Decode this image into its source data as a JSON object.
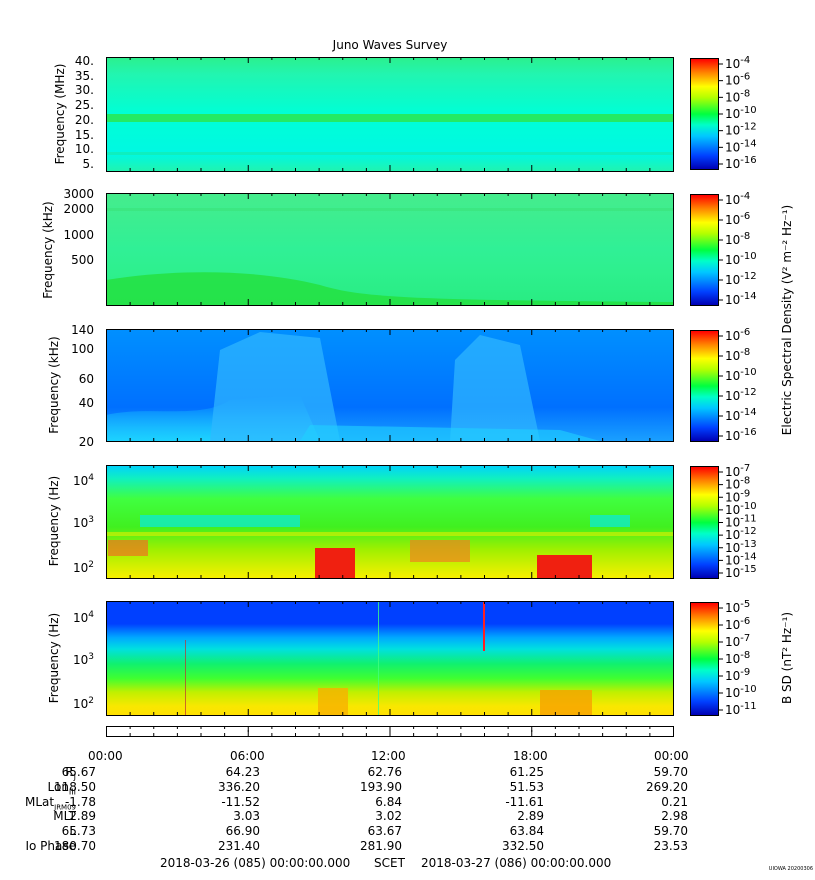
{
  "title": "Juno Waves Survey",
  "panels": [
    {
      "ylabel": "Frequency (MHz)",
      "yticks": [
        "40.",
        "35.",
        "30.",
        "25.",
        "20.",
        "15.",
        "10.",
        "5."
      ],
      "cb_ticks": [
        "10-4",
        "10-6",
        "10-8",
        "10-10",
        "10-12",
        "10-14",
        "10-16"
      ]
    },
    {
      "ylabel": "Frequency (kHz)",
      "yticks": [
        "3000",
        "2000",
        "1000",
        "500"
      ],
      "cb_ticks": [
        "10-4",
        "10-6",
        "10-8",
        "10-10",
        "10-12",
        "10-14"
      ]
    },
    {
      "ylabel": "Frequency (kHz)",
      "yticks": [
        "140",
        "100",
        "60",
        "40",
        "20"
      ],
      "cb_ticks": [
        "10-6",
        "10-8",
        "10-10",
        "10-12",
        "10-14",
        "10-16"
      ]
    },
    {
      "ylabel": "Frequency (Hz)",
      "yticks": [
        "10^4",
        "10^3",
        "10^2"
      ],
      "cb_ticks": [
        "10-7",
        "10-8",
        "10-9",
        "10-10",
        "10-11",
        "10-12",
        "10-13",
        "10-14",
        "10-15"
      ]
    },
    {
      "ylabel": "Frequency (Hz)",
      "yticks": [
        "10^4",
        "10^3",
        "10^2"
      ],
      "cb_ticks": [
        "10-5",
        "10-6",
        "10-7",
        "10-8",
        "10-9",
        "10-10",
        "10-11"
      ]
    }
  ],
  "cb_label_e": "Electric Spectral Density (V² m⁻² Hz⁻¹)",
  "cb_label_b": "B SD (nT² Hz⁻¹)",
  "time_ticks": [
    "00:00",
    "06:00",
    "12:00",
    "18:00",
    "00:00"
  ],
  "ephemeris": [
    {
      "label": "Rj",
      "values": [
        "65.67",
        "64.23",
        "62.76",
        "61.25",
        "59.70"
      ]
    },
    {
      "label": "LonIII",
      "values": [
        "118.50",
        "336.20",
        "193.90",
        "51.53",
        "269.20"
      ]
    },
    {
      "label": "MLatJRM09",
      "values": [
        "-1.78",
        "-11.52",
        "6.84",
        "-11.61",
        "0.21"
      ]
    },
    {
      "label": "MLT",
      "values": [
        "2.89",
        "3.03",
        "3.02",
        "2.89",
        "2.98"
      ]
    },
    {
      "label": "L",
      "values": [
        "65.73",
        "66.90",
        "63.67",
        "63.84",
        "59.70"
      ]
    },
    {
      "label": "Io Phase",
      "values": [
        "180.70",
        "231.40",
        "281.90",
        "332.50",
        "23.53"
      ]
    }
  ],
  "footer": {
    "start": "2018-03-26 (085) 00:00:00.000",
    "scet": "SCET",
    "end": "2018-03-27 (086) 00:00:00.000"
  },
  "stamp": "UIOWA 20200306",
  "chart_data": [
    {
      "type": "heatmap",
      "title": "Juno Waves Survey",
      "xlabel": "SCET",
      "ylabel": "Frequency (MHz)",
      "x_range": [
        "2018-03-26 00:00",
        "2018-03-27 00:00"
      ],
      "ylim": [
        3,
        41
      ],
      "colorbar": {
        "label": "Electric Spectral Density (V² m⁻² Hz⁻¹)",
        "log_range": [
          -17,
          -4
        ]
      }
    },
    {
      "type": "heatmap",
      "ylabel": "Frequency (kHz)",
      "yscale": "log",
      "ylim": [
        150,
        3000
      ],
      "colorbar": {
        "label": "Electric Spectral Density (V² m⁻² Hz⁻¹)",
        "log_range": [
          -15,
          -4
        ]
      }
    },
    {
      "type": "heatmap",
      "ylabel": "Frequency (kHz)",
      "ylim": [
        20,
        140
      ],
      "colorbar": {
        "label": "Electric Spectral Density (V² m⁻² Hz⁻¹)",
        "log_range": [
          -17,
          -6
        ]
      }
    },
    {
      "type": "heatmap",
      "ylabel": "Frequency (Hz)",
      "yscale": "log",
      "ylim": [
        50,
        20000
      ],
      "colorbar": {
        "label": "Electric Spectral Density (V² m⁻² Hz⁻¹)",
        "log_range": [
          -15,
          -7
        ]
      }
    },
    {
      "type": "heatmap",
      "ylabel": "Frequency (Hz)",
      "yscale": "log",
      "ylim": [
        50,
        20000
      ],
      "colorbar": {
        "label": "B SD (nT² Hz⁻¹)",
        "log_range": [
          -11,
          -4.5
        ]
      }
    }
  ]
}
